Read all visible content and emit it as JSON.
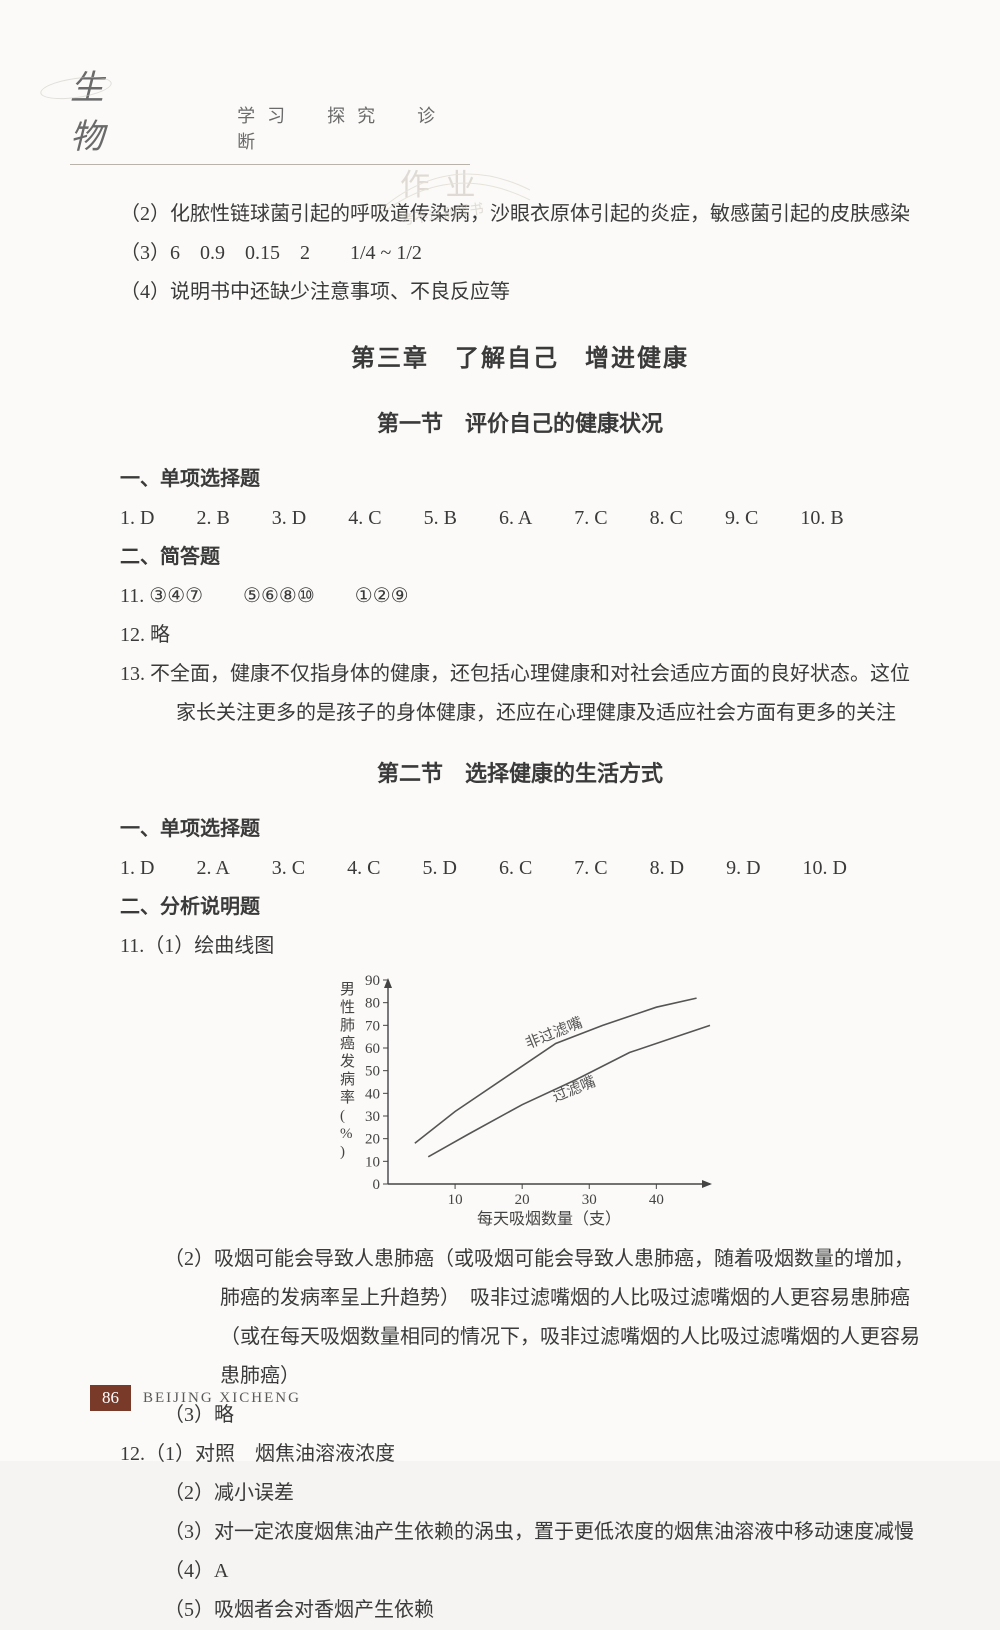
{
  "header": {
    "subject": "生　物",
    "subtitle": "学习　探究　诊断"
  },
  "watermark": {
    "line1": "作 业",
    "line2": "考不过别怪书"
  },
  "pre": {
    "q2": "（2）化脓性链球菌引起的呼吸道传染病，沙眼衣原体引起的炎症，敏感菌引起的皮肤感染",
    "q3": "（3）6　0.9　0.15　2　　1/4 ~ 1/2",
    "q4": "（4）说明书中还缺少注意事项、不良反应等"
  },
  "chapter3": {
    "title": "第三章　了解自己　增进健康"
  },
  "sec1": {
    "title": "第一节　评价自己的健康状况",
    "h1": "一、单项选择题",
    "mc": [
      "1. D",
      "2. B",
      "3. D",
      "4. C",
      "5. B",
      "6. A",
      "7. C",
      "8. C",
      "9. C",
      "10. B"
    ],
    "h2": "二、简答题",
    "q11": "11. ③④⑦　　⑤⑥⑧⑩　　①②⑨",
    "q12": "12. 略",
    "q13": "13. 不全面，健康不仅指身体的健康，还包括心理健康和对社会适应方面的良好状态。这位家长关注更多的是孩子的身体健康，还应在心理健康及适应社会方面有更多的关注"
  },
  "sec2": {
    "title": "第二节　选择健康的生活方式",
    "h1": "一、单项选择题",
    "mc": [
      "1. D",
      "2. A",
      "3. C",
      "4. C",
      "5. D",
      "6. C",
      "7. C",
      "8. D",
      "9. D",
      "10. D"
    ],
    "h2": "二、分析说明题",
    "q11_1": "11.（1）绘曲线图",
    "chart": {
      "type": "line",
      "ylabel": "男性肺癌发病率(%)",
      "xlabel": "每天吸烟数量（支）",
      "xlim": [
        0,
        48
      ],
      "ylim": [
        0,
        90
      ],
      "xticks": [
        10,
        20,
        30,
        40
      ],
      "yticks": [
        0,
        10,
        20,
        30,
        40,
        50,
        60,
        70,
        80,
        90
      ],
      "series": [
        {
          "name": "非过滤嘴",
          "color": "#555555",
          "pts": [
            [
              4,
              18
            ],
            [
              10,
              32
            ],
            [
              18,
              48
            ],
            [
              25,
              62
            ],
            [
              32,
              70
            ],
            [
              40,
              78
            ],
            [
              46,
              82
            ]
          ]
        },
        {
          "name": "过滤嘴",
          "color": "#555555",
          "pts": [
            [
              6,
              12
            ],
            [
              12,
              22
            ],
            [
              20,
              35
            ],
            [
              28,
              46
            ],
            [
              36,
              58
            ],
            [
              44,
              66
            ],
            [
              48,
              70
            ]
          ]
        }
      ],
      "background_color": "#fbfaf8",
      "axis_color": "#444444",
      "line_width": 1.6,
      "font_size": 15
    },
    "q11_2": "（2）吸烟可能会导致人患肺癌（或吸烟可能会导致人患肺癌，随着吸烟数量的增加，肺癌的发病率呈上升趋势）　吸非过滤嘴烟的人比吸过滤嘴烟的人更容易患肺癌（或在每天吸烟数量相同的情况下，吸非过滤嘴烟的人比吸过滤嘴烟的人更容易患肺癌）",
    "q11_3": "（3）略",
    "q12_1": "12.（1）对照　烟焦油溶液浓度",
    "q12_2": "（2）减小误差",
    "q12_3": "（3）对一定浓度烟焦油产生依赖的涡虫，置于更低浓度的烟焦油溶液中移动速度减慢",
    "q12_4": "（4）A",
    "q12_5": "（5）吸烟者会对香烟产生依赖"
  },
  "footer": {
    "page": "86",
    "label": "BEIJING XICHENG"
  }
}
